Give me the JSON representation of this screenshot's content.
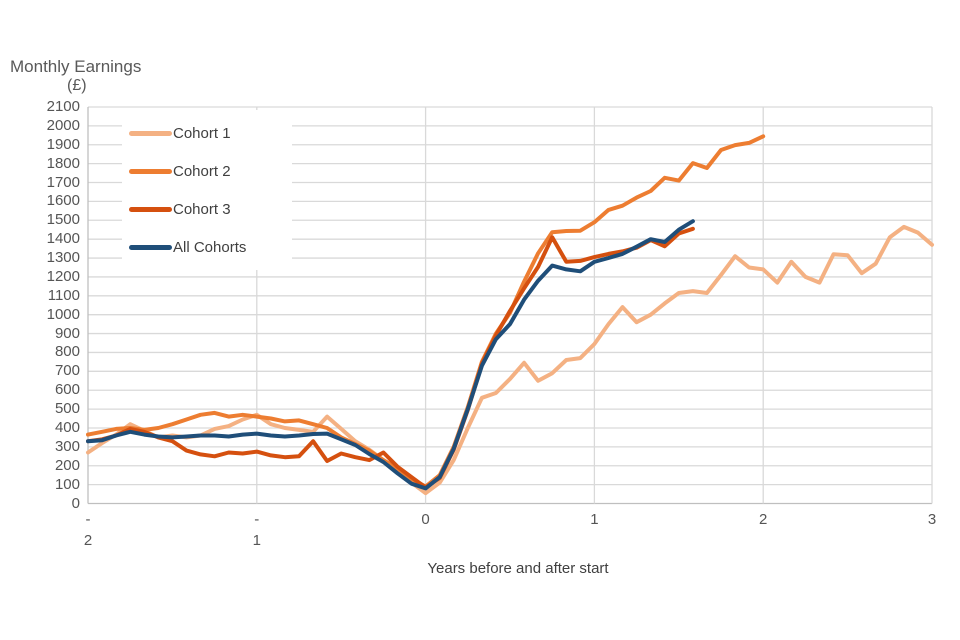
{
  "chart_data": {
    "type": "line",
    "title_main": "Monthly Earnings",
    "title_unit": "(£)",
    "title": "Monthly Earnings (£)",
    "xlabel": "Years before and after start",
    "ylabel": "Monthly Earnings (£)",
    "xlim": [
      -2,
      3
    ],
    "ylim": [
      0,
      2100
    ],
    "y_tick_step": 100,
    "x_ticks": [
      -2,
      -1,
      0,
      1,
      2,
      3
    ],
    "x_tick_labels": [
      "-\n2",
      "-\n1",
      "0",
      "1",
      "2",
      "3"
    ],
    "grid": true,
    "legend_position": "top-left",
    "points_per_year": 12,
    "axis_color": "#BFBFBF",
    "grid_color": "#D9D9D9",
    "series": [
      {
        "name": "Cohort 1",
        "color": "#F4B183",
        "x_start": -2,
        "values": [
          270,
          320,
          365,
          420,
          385,
          350,
          360,
          350,
          360,
          395,
          410,
          445,
          470,
          420,
          400,
          390,
          380,
          460,
          395,
          330,
          285,
          230,
          170,
          110,
          55,
          110,
          230,
          400,
          560,
          585,
          660,
          745,
          650,
          690,
          760,
          770,
          845,
          950,
          1040,
          960,
          1000,
          1060,
          1115,
          1125,
          1115,
          1210,
          1310,
          1250,
          1240,
          1170,
          1280,
          1200,
          1170,
          1320,
          1315,
          1220,
          1270,
          1410,
          1465,
          1435,
          1370
        ]
      },
      {
        "name": "Cohort 2",
        "color": "#ED7D31",
        "x_start": -2,
        "values": [
          365,
          380,
          395,
          400,
          390,
          400,
          420,
          445,
          470,
          480,
          460,
          470,
          460,
          450,
          435,
          440,
          420,
          400,
          350,
          315,
          280,
          230,
          185,
          130,
          90,
          150,
          300,
          510,
          750,
          900,
          1010,
          1175,
          1325,
          1437,
          1443,
          1445,
          1490,
          1555,
          1577,
          1620,
          1655,
          1725,
          1710,
          1803,
          1777,
          1872,
          1898,
          1910,
          1945
        ]
      },
      {
        "name": "Cohort 3",
        "color": "#D5500F",
        "x_start": -2,
        "values": [
          330,
          340,
          360,
          395,
          380,
          350,
          330,
          280,
          260,
          250,
          270,
          265,
          275,
          255,
          245,
          250,
          330,
          225,
          265,
          245,
          230,
          270,
          195,
          140,
          85,
          135,
          285,
          495,
          740,
          890,
          1020,
          1140,
          1253,
          1410,
          1280,
          1285,
          1305,
          1322,
          1335,
          1355,
          1395,
          1362,
          1430,
          1455
        ]
      },
      {
        "name": "All Cohorts",
        "color": "#1F4E79",
        "x_start": -2,
        "values": [
          330,
          335,
          360,
          380,
          365,
          355,
          350,
          355,
          360,
          360,
          355,
          365,
          370,
          360,
          355,
          360,
          368,
          370,
          340,
          310,
          262,
          220,
          160,
          105,
          80,
          140,
          290,
          500,
          730,
          870,
          950,
          1080,
          1180,
          1260,
          1240,
          1230,
          1280,
          1300,
          1322,
          1360,
          1400,
          1385,
          1450,
          1495
        ]
      }
    ]
  }
}
